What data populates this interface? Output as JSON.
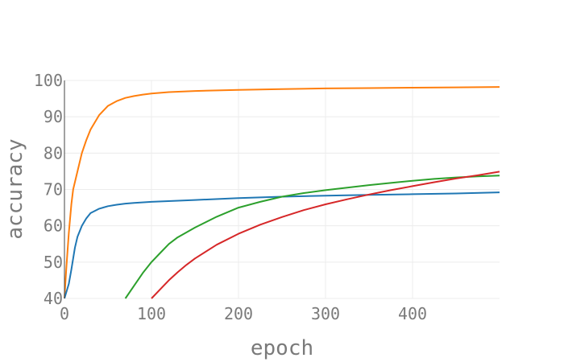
{
  "chart_data": {
    "type": "line",
    "title": "",
    "xlabel": "epoch",
    "ylabel": "accuracy",
    "xlim": [
      0,
      500
    ],
    "ylim": [
      40,
      100
    ],
    "xticks": [
      0,
      100,
      200,
      300,
      400
    ],
    "yticks": [
      40,
      50,
      60,
      70,
      80,
      90,
      100
    ],
    "grid": true,
    "legend": "none",
    "series": [
      {
        "color": "#ff7f0e",
        "x": [
          0,
          2,
          5,
          8,
          10,
          15,
          20,
          25,
          30,
          40,
          50,
          60,
          70,
          80,
          90,
          100,
          120,
          150,
          200,
          250,
          300,
          350,
          400,
          450,
          500
        ],
        "y": [
          40,
          48,
          58,
          66,
          70,
          75,
          80,
          83.5,
          86.5,
          90.5,
          93,
          94.3,
          95.2,
          95.7,
          96.1,
          96.4,
          96.8,
          97.1,
          97.4,
          97.6,
          97.8,
          97.9,
          98,
          98.1,
          98.2
        ]
      },
      {
        "color": "#1f77b4",
        "x": [
          0,
          5,
          8,
          10,
          12,
          15,
          20,
          25,
          30,
          40,
          50,
          60,
          70,
          80,
          100,
          150,
          200,
          250,
          300,
          350,
          400,
          450,
          500
        ],
        "y": [
          40,
          44,
          48,
          51,
          54,
          57,
          60,
          62,
          63.5,
          64.7,
          65.4,
          65.8,
          66.1,
          66.3,
          66.6,
          67.1,
          67.6,
          68,
          68.3,
          68.5,
          68.7,
          68.9,
          69.2
        ]
      },
      {
        "color": "#2ca02c",
        "x": [
          70,
          80,
          90,
          100,
          110,
          120,
          130,
          150,
          175,
          200,
          225,
          250,
          275,
          300,
          325,
          350,
          375,
          400,
          425,
          450,
          475,
          500
        ],
        "y": [
          40,
          43.5,
          47,
          50,
          52.5,
          55,
          56.8,
          59.5,
          62.5,
          65,
          66.6,
          68,
          69,
          69.8,
          70.5,
          71.2,
          71.8,
          72.4,
          72.9,
          73.3,
          73.6,
          73.8
        ]
      },
      {
        "color": "#d62728",
        "x": [
          100,
          110,
          120,
          130,
          140,
          150,
          175,
          200,
          225,
          250,
          275,
          300,
          325,
          350,
          375,
          400,
          425,
          450,
          475,
          500
        ],
        "y": [
          40,
          42.5,
          45,
          47.2,
          49.2,
          51,
          54.8,
          57.8,
          60.3,
          62.4,
          64.3,
          65.9,
          67.3,
          68.6,
          69.8,
          70.9,
          72,
          73,
          73.9,
          74.9
        ]
      }
    ]
  }
}
